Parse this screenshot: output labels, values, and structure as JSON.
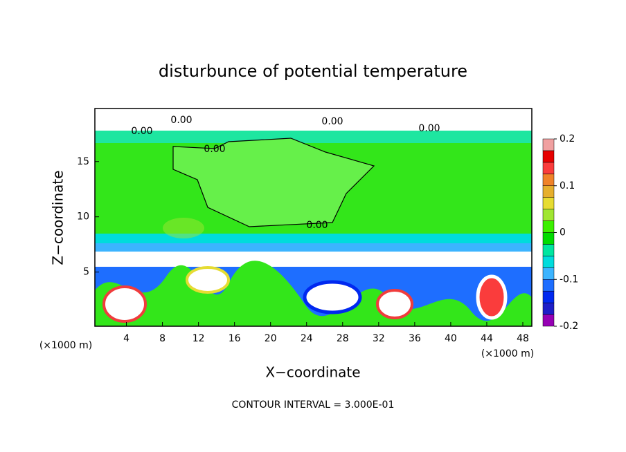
{
  "chart_data": {
    "type": "contour",
    "title": "disturbunce of potential temperature",
    "xlabel": "X−coordinate",
    "ylabel": "Z−coordinate",
    "xunit": "(×1000 m)",
    "yunit": "(×1000 m)",
    "footer": "CONTOUR INTERVAL = 3.000E-01",
    "xlim": [
      0.5,
      49
    ],
    "xticks": [
      4,
      8,
      12,
      16,
      20,
      24,
      28,
      32,
      36,
      40,
      44,
      48
    ],
    "ylim": [
      0.1,
      19.8
    ],
    "yticks": [
      5,
      10,
      15
    ],
    "clim": [
      -0.2,
      0.2
    ],
    "cticks": [
      -0.2,
      -0.1,
      0,
      0.1,
      0.2
    ],
    "colors": [
      "#9600b4",
      "#1e1ec8",
      "#0028f0",
      "#1e6eff",
      "#3cb4ff",
      "#00dcdc",
      "#00e6a0",
      "#00dc00",
      "#3cf000",
      "#a0e632",
      "#e6dc32",
      "#e6af2d",
      "#f08228",
      "#fa3c3c",
      "#e60000",
      "#f0a0a0"
    ],
    "contour_labels": [
      "0.00",
      "0.00",
      "0.00",
      "0.00",
      "0.00",
      "0.00"
    ]
  }
}
